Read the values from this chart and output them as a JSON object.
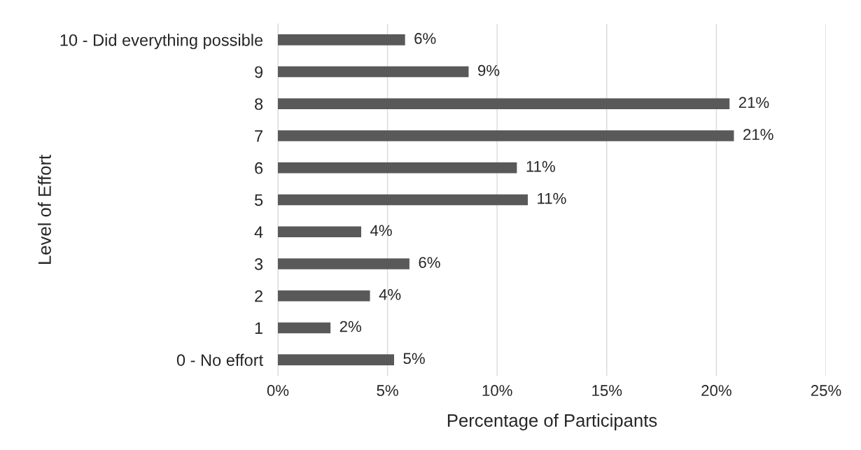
{
  "chart_data": {
    "type": "bar",
    "orientation": "horizontal",
    "xlabel": "Percentage of Participants",
    "ylabel": "Level of Effort",
    "categories": [
      "10 - Did everything possible",
      "9",
      "8",
      "7",
      "6",
      "5",
      "4",
      "3",
      "2",
      "1",
      "0 - No effort"
    ],
    "values": [
      5.8,
      8.7,
      20.6,
      20.8,
      10.9,
      11.4,
      3.8,
      6.0,
      4.2,
      2.4,
      5.3
    ],
    "value_labels": [
      "6%",
      "9%",
      "21%",
      "21%",
      "11%",
      "11%",
      "4%",
      "6%",
      "4%",
      "2%",
      "5%"
    ],
    "color": "#595959",
    "xlim": [
      0,
      25
    ],
    "xticks": [
      {
        "value": 0,
        "label": "0%"
      },
      {
        "value": 5,
        "label": "5%"
      },
      {
        "value": 10,
        "label": "10%"
      },
      {
        "value": 15,
        "label": "15%"
      },
      {
        "value": 20,
        "label": "20%"
      },
      {
        "value": 25,
        "label": "25%"
      }
    ],
    "grid": "x"
  }
}
